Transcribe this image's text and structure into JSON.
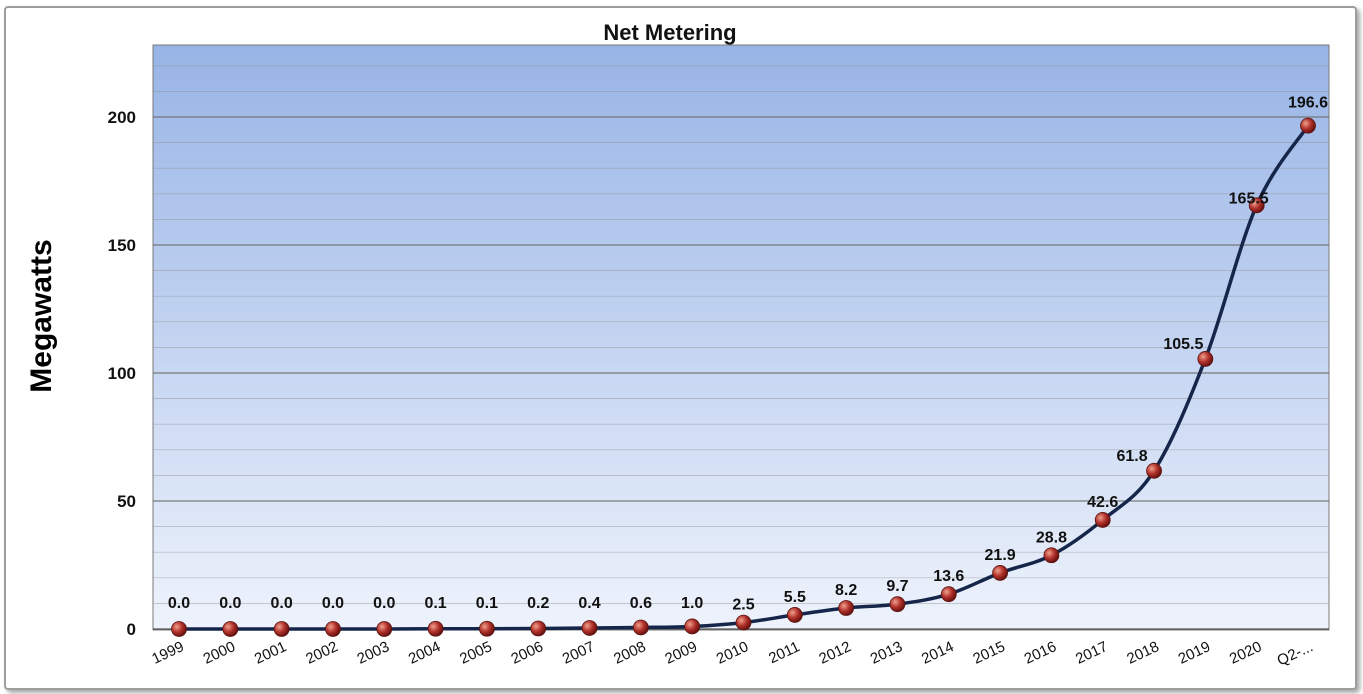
{
  "chart_data": {
    "type": "line",
    "title": "Net Metering",
    "xlabel": "",
    "ylabel": "Megawatts",
    "categories": [
      "1999",
      "2000",
      "2001",
      "2002",
      "2003",
      "2004",
      "2005",
      "2006",
      "2007",
      "2008",
      "2009",
      "2010",
      "2011",
      "2012",
      "2013",
      "2014",
      "2015",
      "2016",
      "2017",
      "2018",
      "2019",
      "2020",
      "Q2-..."
    ],
    "series": [
      {
        "values": [
          0.0,
          0.0,
          0.0,
          0.0,
          0.0,
          0.1,
          0.1,
          0.2,
          0.4,
          0.6,
          1.0,
          2.5,
          5.5,
          8.2,
          9.7,
          13.6,
          21.9,
          28.8,
          42.6,
          61.8,
          105.5,
          165.5,
          196.6
        ],
        "labels": [
          "0.0",
          "0.0",
          "0.0",
          "0.0",
          "0.0",
          "0.1",
          "0.1",
          "0.2",
          "0.4",
          "0.6",
          "1.0",
          "2.5",
          "5.5",
          "8.2",
          "9.7",
          "13.6",
          "21.9",
          "28.8",
          "42.6",
          "61.8",
          "105.5",
          "165.5",
          "196.6"
        ]
      }
    ],
    "ylim": [
      0,
      225
    ],
    "yticks": [
      "0",
      "50",
      "100",
      "150",
      "200"
    ],
    "grid": true,
    "colors": {
      "plot_top": "#98b4e6",
      "plot_bottom": "#eef3fc",
      "line": "#16264a",
      "marker": "#b2322c",
      "gridline": "#8a8a8a"
    }
  }
}
